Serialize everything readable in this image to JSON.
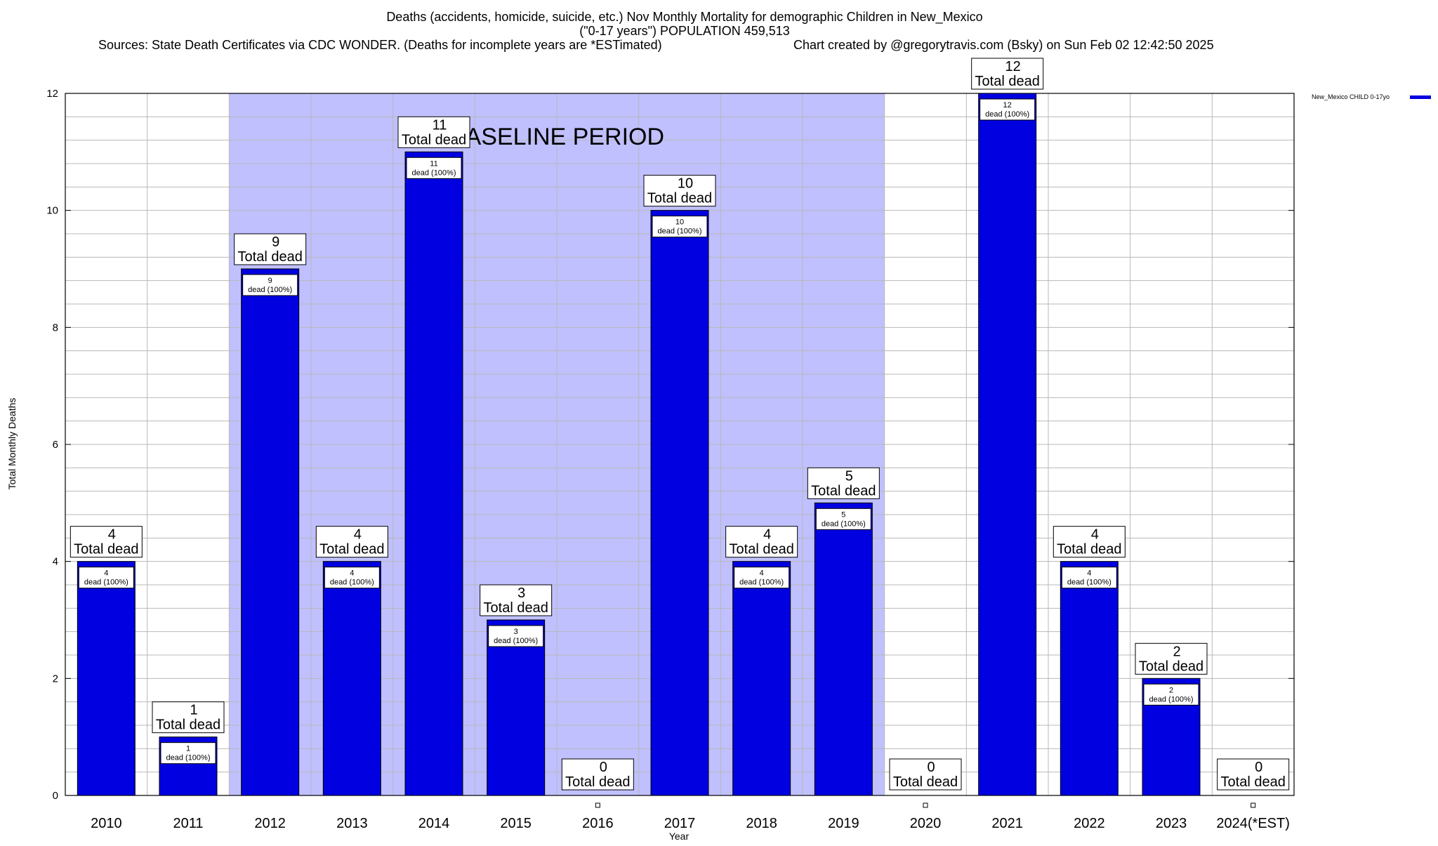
{
  "title": {
    "line1": "Deaths (accidents, homicide, suicide, etc.) Nov Monthly Mortality for demographic Children in New_Mexico",
    "line2": "(\"0-17 years\") POPULATION 459,513",
    "line3_left": "Sources: State Death Certificates via CDC WONDER. (Deaths for incomplete years are *ESTimated)",
    "line3_right": "Chart created by @gregorytravis.com (Bsky) on Sun Feb 02 12:42:50 2025"
  },
  "chart_data": {
    "type": "bar",
    "title": "Deaths (accidents, homicide, suicide, etc.) Nov Monthly Mortality for demographic Children in New_Mexico",
    "xlabel": "Year",
    "ylabel": "Total Monthly Deaths",
    "categories": [
      "2010",
      "2011",
      "2012",
      "2013",
      "2014",
      "2015",
      "2016",
      "2017",
      "2018",
      "2019",
      "2020",
      "2021",
      "2022",
      "2023",
      "2024(*EST)"
    ],
    "series": [
      {
        "name": "New_Mexico CHILD 0-17yo",
        "color": "#0000e0",
        "values": [
          4,
          1,
          9,
          4,
          11,
          3,
          0,
          10,
          4,
          5,
          0,
          12,
          4,
          2,
          0
        ]
      }
    ],
    "ylim": [
      0,
      12
    ],
    "yticks": [
      0,
      2,
      4,
      6,
      8,
      10,
      12
    ],
    "grid": true,
    "legend_position": "top-right",
    "baseline_period": {
      "label": "BASELINE PERIOD",
      "from": "2012",
      "to": "2019",
      "color": "#c0c0ff"
    },
    "total_label": "Total dead",
    "inner_label_suffix": "dead (100%)"
  }
}
